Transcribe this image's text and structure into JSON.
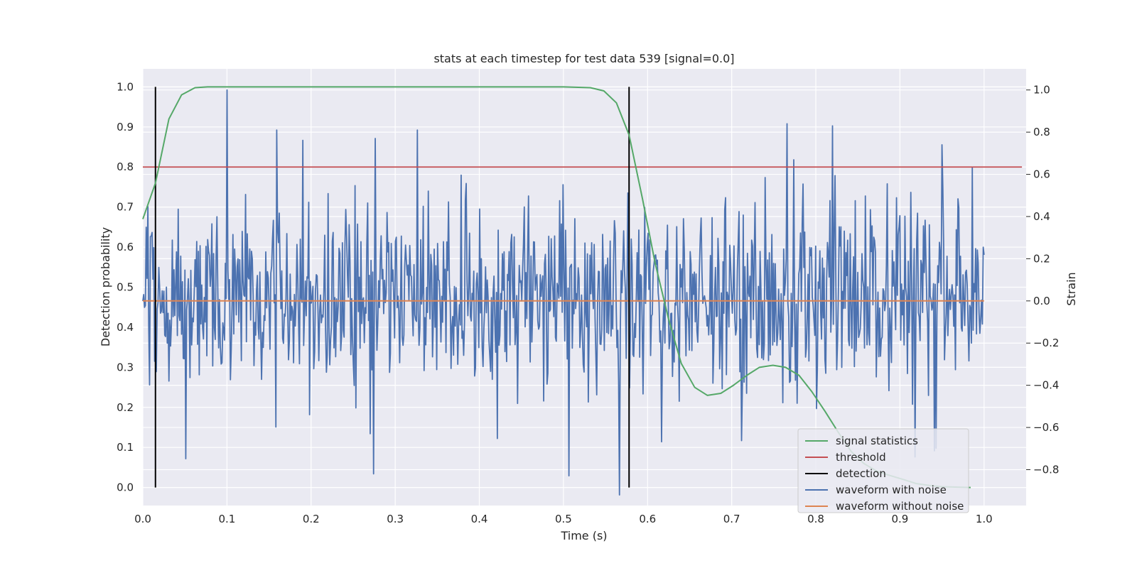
{
  "chart_data": {
    "type": "line",
    "title": "stats at each timestep for test data 539 [signal=0.0]",
    "xlabel": "Time (s)",
    "ylabel_left": "Detection probability",
    "ylabel_right": "Strain",
    "xlim": [
      0.0,
      1.05
    ],
    "ylim_left": [
      -0.045,
      1.045
    ],
    "ylim_right": [
      -0.97,
      1.1
    ],
    "x_ticks": [
      "0.0",
      "0.1",
      "0.2",
      "0.3",
      "0.4",
      "0.5",
      "0.6",
      "0.7",
      "0.8",
      "0.9",
      "1.0"
    ],
    "y_left_ticks": [
      "0.0",
      "0.1",
      "0.2",
      "0.3",
      "0.4",
      "0.5",
      "0.6",
      "0.7",
      "0.8",
      "0.9",
      "1.0"
    ],
    "y_right_ticks": [
      "−0.8",
      "−0.6",
      "−0.4",
      "−0.2",
      "0.0",
      "0.2",
      "0.4",
      "0.6",
      "0.8",
      "1.0"
    ],
    "grid": true,
    "legend_position": "lower-right",
    "colors": {
      "background": "#eaeaf2",
      "grid": "#ffffff",
      "signal_statistics": "#55a868",
      "threshold": "#c44e52",
      "detection": "#000000",
      "waveform_with_noise": "#4c72b0",
      "waveform_without_noise": "#dd8452"
    },
    "legend": [
      {
        "label": "signal statistics",
        "color": "#55a868"
      },
      {
        "label": "threshold",
        "color": "#c44e52"
      },
      {
        "label": "detection",
        "color": "#000000"
      },
      {
        "label": "waveform with noise",
        "color": "#4c72b0"
      },
      {
        "label": "waveform without noise",
        "color": "#dd8452"
      }
    ],
    "series": [
      {
        "name": "signal statistics",
        "axis": "left",
        "x": [
          0.0,
          0.015,
          0.031,
          0.046,
          0.062,
          0.077,
          0.092,
          0.2,
          0.3,
          0.4,
          0.5,
          0.532,
          0.548,
          0.563,
          0.578,
          0.594,
          0.609,
          0.625,
          0.64,
          0.656,
          0.671,
          0.687,
          0.702,
          0.718,
          0.733,
          0.749,
          0.764,
          0.78,
          0.795,
          0.811,
          0.826,
          0.842,
          0.857,
          0.873,
          0.888,
          0.904,
          0.919,
          0.935,
          0.95,
          0.966,
          0.984
        ],
        "y": [
          0.67,
          0.76,
          0.92,
          0.98,
          0.998,
          1.0,
          1.0,
          1.0,
          1.0,
          1.0,
          1.0,
          0.998,
          0.99,
          0.96,
          0.88,
          0.72,
          0.56,
          0.42,
          0.31,
          0.25,
          0.23,
          0.235,
          0.255,
          0.28,
          0.3,
          0.305,
          0.3,
          0.28,
          0.24,
          0.19,
          0.14,
          0.09,
          0.06,
          0.04,
          0.03,
          0.02,
          0.01,
          0.005,
          0.002,
          0.001,
          0.0
        ]
      },
      {
        "name": "threshold",
        "axis": "left",
        "x": [
          0.0,
          1.045
        ],
        "y": [
          0.8,
          0.8
        ]
      },
      {
        "name": "detection",
        "axis": "left",
        "segments": [
          {
            "x": 0.015,
            "y0": 0.0,
            "y1": 1.0
          },
          {
            "x": 0.578,
            "y0": 0.0,
            "y1": 1.0
          }
        ]
      },
      {
        "name": "waveform with noise",
        "axis": "right",
        "x_range": [
          0.0,
          1.0
        ],
        "samples": 1000,
        "y_range": [
          -0.92,
          1.0
        ],
        "std": 0.22,
        "highlighted_points": [
          {
            "x": 0.1,
            "y": 1.0
          },
          {
            "x": 0.159,
            "y": 0.81
          },
          {
            "x": 0.276,
            "y": 0.77
          },
          {
            "x": 0.326,
            "y": 0.81
          },
          {
            "x": 0.274,
            "y": -0.82
          },
          {
            "x": 0.567,
            "y": -0.92
          },
          {
            "x": 0.766,
            "y": 0.84
          },
          {
            "x": 0.82,
            "y": 0.83
          },
          {
            "x": 0.95,
            "y": 0.74
          }
        ]
      },
      {
        "name": "waveform without noise",
        "axis": "right",
        "x": [
          0.0,
          1.0
        ],
        "y": [
          0.0,
          0.0
        ]
      }
    ]
  }
}
